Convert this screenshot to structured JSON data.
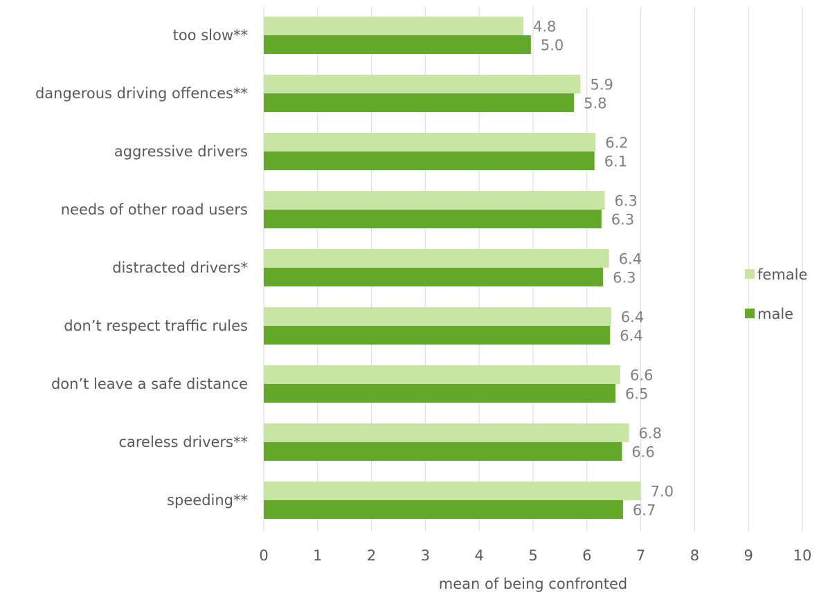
{
  "chart_data": {
    "type": "bar",
    "orientation": "horizontal",
    "categories": [
      "too slow**",
      "dangerous driving offences**",
      "aggressive drivers",
      "needs of other road users",
      "distracted drivers*",
      "don’t respect traffic rules",
      "don’t leave a safe distance",
      "careless drivers**",
      "speeding**"
    ],
    "series": [
      {
        "name": "female",
        "color": "#c9e5a4",
        "values": [
          4.82,
          5.88,
          6.16,
          6.33,
          6.41,
          6.45,
          6.62,
          6.78,
          7.0
        ],
        "labels": [
          "4.8",
          "5.9",
          "6.2",
          "6.3",
          "6.4",
          "6.4",
          "6.6",
          "6.8",
          "7.0"
        ]
      },
      {
        "name": "male",
        "color": "#64a82a",
        "values": [
          4.96,
          5.76,
          6.14,
          6.27,
          6.3,
          6.43,
          6.53,
          6.65,
          6.67
        ],
        "labels": [
          "5.0",
          "5.8",
          "6.1",
          "6.3",
          "6.3",
          "6.4",
          "6.5",
          "6.6",
          "6.7"
        ]
      }
    ],
    "x_ticks": [
      "0",
      "1",
      "2",
      "3",
      "4",
      "5",
      "6",
      "7",
      "8",
      "9",
      "10"
    ],
    "xlim": [
      0,
      10
    ],
    "xlabel": "mean of being confronted",
    "ylabel": "",
    "title": "",
    "grid": "vertical",
    "legend": {
      "position": "right",
      "entries": [
        "female",
        "male"
      ]
    }
  }
}
